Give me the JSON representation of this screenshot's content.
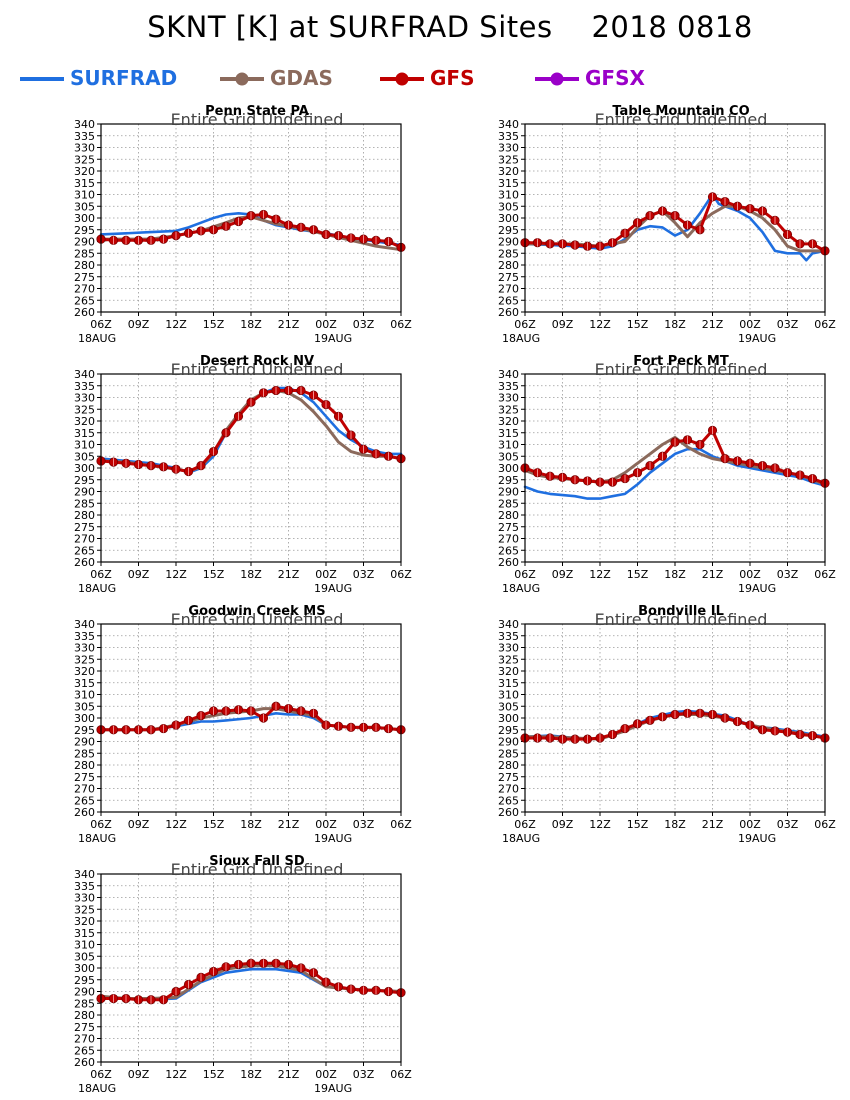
{
  "title": "SKNT [K] at SURFRAD Sites",
  "date": "2018 0818",
  "undefined_note": "Entire Grid Undefined",
  "legend": [
    {
      "name": "SURFRAD",
      "color": "#1f6fe0",
      "marker": "none"
    },
    {
      "name": "GDAS",
      "color": "#8b6a5c",
      "marker": "circle"
    },
    {
      "name": "GFS",
      "color": "#c00000",
      "marker": "circle"
    },
    {
      "name": "GFSX",
      "color": "#9a00c8",
      "marker": "circle"
    }
  ],
  "axis": {
    "x_ticks": [
      "06Z",
      "09Z",
      "12Z",
      "15Z",
      "18Z",
      "21Z",
      "00Z",
      "03Z",
      "06Z"
    ],
    "x_day_labels": [
      {
        "tick": 0,
        "label": "18AUG"
      },
      {
        "tick": 6,
        "label": "19AUG"
      }
    ],
    "y_ticks": [
      260,
      265,
      270,
      275,
      280,
      285,
      290,
      295,
      300,
      305,
      310,
      315,
      320,
      325,
      330,
      335,
      340
    ],
    "xlim": [
      0,
      24
    ],
    "ylim": [
      260,
      340
    ]
  },
  "chart_data": [
    {
      "type": "line",
      "title": "Penn State PA",
      "x_unit": "hours since 06Z 18AUG",
      "series": [
        {
          "name": "SURFRAD",
          "x": [
            0,
            2,
            4,
            6,
            7,
            8,
            9,
            10,
            11,
            12,
            13,
            14,
            15,
            16,
            18,
            20,
            22,
            24
          ],
          "values": [
            293,
            293.5,
            294,
            294.5,
            296,
            298,
            300,
            301.5,
            302,
            301.5,
            299,
            297,
            296,
            295,
            293.5,
            291.5,
            290,
            288.5
          ]
        },
        {
          "name": "GDAS",
          "x": [
            0,
            2,
            4,
            6,
            8,
            10,
            11,
            12,
            14,
            16,
            18,
            20,
            22,
            24
          ],
          "values": [
            291,
            291,
            291,
            292.5,
            294.5,
            298,
            300,
            300.5,
            297.5,
            295.5,
            293,
            290.5,
            288,
            286.5
          ]
        },
        {
          "name": "GFS",
          "x": [
            0,
            1,
            2,
            3,
            4,
            5,
            6,
            7,
            8,
            9,
            10,
            11,
            12,
            13,
            14,
            15,
            16,
            17,
            18,
            19,
            20,
            21,
            22,
            23,
            24
          ],
          "values": [
            291,
            290.5,
            290.5,
            290.5,
            290.5,
            291,
            292.5,
            293.5,
            294.5,
            295,
            296.5,
            298.5,
            301,
            301.5,
            299.5,
            297,
            296,
            295,
            293,
            292.5,
            291.5,
            291,
            290.5,
            290,
            287.5
          ]
        }
      ]
    },
    {
      "type": "line",
      "title": "Table Mountain CO",
      "x_unit": "hours since 06Z 18AUG",
      "series": [
        {
          "name": "SURFRAD",
          "x": [
            0,
            2,
            4,
            6,
            7,
            8,
            9,
            10,
            11,
            12,
            13,
            14,
            15,
            15.5,
            16,
            17,
            18,
            19,
            20,
            21,
            22,
            22.5,
            23,
            24
          ],
          "values": [
            289,
            288.5,
            288,
            287,
            288,
            291,
            295,
            296.5,
            296,
            292.5,
            295,
            302,
            310,
            306,
            305,
            303,
            300,
            294,
            286,
            285,
            285,
            282,
            285,
            286
          ]
        },
        {
          "name": "GDAS",
          "x": [
            0,
            2,
            4,
            6,
            8,
            9,
            10,
            11,
            12,
            13,
            14,
            15,
            16,
            17,
            18,
            19,
            20,
            21,
            22,
            23,
            24
          ],
          "values": [
            289,
            289,
            289,
            288,
            290,
            296,
            301,
            303,
            298,
            292,
            298,
            302,
            305,
            305,
            303,
            300,
            295,
            288,
            286,
            286,
            286
          ]
        },
        {
          "name": "GFS",
          "x": [
            0,
            1,
            2,
            3,
            4,
            5,
            6,
            7,
            8,
            9,
            10,
            11,
            12,
            13,
            14,
            15,
            16,
            17,
            18,
            19,
            20,
            21,
            22,
            23,
            24
          ],
          "values": [
            289.5,
            289.5,
            289,
            289,
            288.5,
            288,
            288,
            289.5,
            293.5,
            298,
            301,
            303,
            301,
            297,
            295,
            309,
            307,
            305,
            304,
            303,
            299,
            293,
            289,
            289,
            286
          ]
        }
      ]
    },
    {
      "type": "line",
      "title": "Desert Rock NV",
      "x_unit": "hours since 06Z 18AUG",
      "series": [
        {
          "name": "SURFRAD",
          "x": [
            0,
            2,
            4,
            6,
            7,
            8,
            9,
            10,
            11,
            12,
            13,
            14,
            15,
            16,
            17,
            18,
            19,
            20,
            21,
            22,
            23,
            24
          ],
          "values": [
            304,
            303,
            302,
            300,
            298,
            300,
            305,
            315,
            322,
            328,
            332,
            334,
            334,
            332,
            328,
            322,
            316,
            312,
            309,
            307,
            306,
            306
          ]
        },
        {
          "name": "GDAS",
          "x": [
            0,
            2,
            4,
            6,
            7,
            8,
            9,
            10,
            11,
            12,
            13,
            14,
            15,
            16,
            17,
            18,
            19,
            20,
            21,
            22,
            23,
            24
          ],
          "values": [
            303,
            302.5,
            301,
            299.5,
            298.5,
            300.5,
            306.5,
            316,
            323,
            329,
            332,
            333,
            332,
            329,
            324,
            318,
            311,
            307,
            305.5,
            305,
            305,
            304
          ]
        },
        {
          "name": "GFS",
          "x": [
            0,
            1,
            2,
            3,
            4,
            5,
            6,
            7,
            8,
            9,
            10,
            11,
            12,
            13,
            14,
            15,
            16,
            17,
            18,
            19,
            20,
            21,
            22,
            23,
            24
          ],
          "values": [
            303,
            302.5,
            302,
            301.5,
            301,
            300.5,
            299.5,
            298.5,
            301,
            307,
            315,
            322,
            328,
            332,
            333,
            333,
            333,
            331,
            327,
            322,
            314,
            308,
            306,
            305,
            304
          ]
        }
      ]
    },
    {
      "type": "line",
      "title": "Fort Peck MT",
      "x_unit": "hours since 06Z 18AUG",
      "series": [
        {
          "name": "SURFRAD",
          "x": [
            0,
            1,
            2,
            4,
            5,
            6,
            7,
            8,
            9,
            10,
            11,
            12,
            13,
            14,
            15,
            16,
            17,
            18,
            19,
            20,
            21,
            22,
            23,
            24
          ],
          "values": [
            292,
            290,
            289,
            288,
            287,
            287,
            288,
            289,
            293,
            298,
            302,
            306,
            308,
            308,
            305,
            303,
            301,
            300,
            299,
            298,
            297,
            296,
            294,
            292.5
          ]
        },
        {
          "name": "GDAS",
          "x": [
            0,
            1,
            2,
            4,
            6,
            7,
            8,
            9,
            10,
            11,
            12,
            13,
            14,
            15,
            16,
            17,
            18,
            19,
            20,
            21,
            22,
            23,
            24
          ],
          "values": [
            299,
            297,
            296,
            295,
            294,
            295,
            298,
            302,
            306,
            310,
            313,
            309,
            306,
            304,
            303,
            302,
            301,
            300,
            299,
            298,
            297,
            295,
            293
          ]
        },
        {
          "name": "GFS",
          "x": [
            0,
            1,
            2,
            3,
            4,
            5,
            6,
            7,
            8,
            9,
            10,
            11,
            12,
            13,
            14,
            15,
            16,
            17,
            18,
            19,
            20,
            21,
            22,
            23,
            24
          ],
          "values": [
            300,
            298,
            296.5,
            296,
            295,
            294.5,
            294,
            294,
            295.5,
            298,
            301,
            305,
            311,
            312,
            310,
            316,
            304,
            303,
            302,
            301,
            300,
            298,
            297,
            295.5,
            293.5
          ]
        }
      ]
    },
    {
      "type": "line",
      "title": "Goodwin Creek MS",
      "x_unit": "hours since 06Z 18AUG",
      "series": [
        {
          "name": "SURFRAD",
          "x": [
            0,
            2,
            4,
            6,
            8,
            9,
            10,
            12,
            13,
            14,
            15,
            16,
            17,
            18,
            20,
            22,
            24
          ],
          "values": [
            295,
            295,
            295,
            296.5,
            298.5,
            298.5,
            299,
            300,
            301,
            302,
            301.5,
            301.5,
            300,
            297,
            296,
            296,
            295
          ]
        },
        {
          "name": "GDAS",
          "x": [
            0,
            2,
            4,
            6,
            8,
            10,
            12,
            13,
            14,
            15,
            16,
            17,
            18,
            20,
            22,
            24
          ],
          "values": [
            295,
            295,
            295,
            297,
            300,
            302,
            303,
            304,
            304,
            303,
            302,
            301,
            297,
            296,
            296,
            295
          ]
        },
        {
          "name": "GFS",
          "x": [
            0,
            1,
            2,
            3,
            4,
            5,
            6,
            7,
            8,
            9,
            10,
            11,
            12,
            13,
            14,
            15,
            16,
            17,
            18,
            19,
            20,
            21,
            22,
            23,
            24
          ],
          "values": [
            295,
            295,
            295,
            295,
            295,
            295.5,
            297,
            299,
            301,
            303,
            303,
            303.5,
            303,
            300,
            305,
            304,
            303,
            302,
            297,
            296.5,
            296,
            296,
            296,
            295.5,
            295
          ]
        }
      ]
    },
    {
      "type": "line",
      "title": "Bondville IL",
      "x_unit": "hours since 06Z 18AUG",
      "series": [
        {
          "name": "SURFRAD",
          "x": [
            0,
            2,
            4,
            6,
            8,
            10,
            12,
            13,
            14,
            16,
            18,
            19,
            20,
            22,
            24
          ],
          "values": [
            292,
            292.5,
            291.5,
            291,
            295,
            300,
            302.5,
            303,
            302.5,
            301,
            297,
            296,
            295.5,
            294,
            292
          ]
        },
        {
          "name": "GDAS",
          "x": [
            0,
            2,
            4,
            6,
            8,
            10,
            12,
            14,
            16,
            18,
            20,
            22,
            24
          ],
          "values": [
            292,
            292,
            291.5,
            291,
            294.5,
            299,
            301.5,
            301.5,
            300,
            297,
            295,
            293.5,
            291.5
          ]
        },
        {
          "name": "GFS",
          "x": [
            0,
            1,
            2,
            3,
            4,
            5,
            6,
            7,
            8,
            9,
            10,
            11,
            12,
            13,
            14,
            15,
            16,
            17,
            18,
            19,
            20,
            21,
            22,
            23,
            24
          ],
          "values": [
            291.5,
            291.5,
            291.5,
            291,
            291,
            291,
            291.5,
            293,
            295.5,
            297.5,
            299,
            300.5,
            301.5,
            302,
            302,
            301.5,
            300,
            298.5,
            297,
            295,
            294.5,
            294,
            293,
            292.5,
            291.5
          ]
        }
      ]
    },
    {
      "type": "line",
      "title": "Sioux Fall SD",
      "x_unit": "hours since 06Z 18AUG",
      "series": [
        {
          "name": "SURFRAD",
          "x": [
            0,
            2,
            4,
            6,
            8,
            10,
            12,
            14,
            16,
            17,
            18,
            20,
            22,
            24
          ],
          "values": [
            287,
            287,
            286.5,
            287,
            294,
            298,
            299.5,
            299.5,
            298,
            295,
            292,
            291,
            290.5,
            290
          ]
        },
        {
          "name": "GDAS",
          "x": [
            0,
            2,
            4,
            6,
            8,
            10,
            12,
            14,
            16,
            17,
            18,
            20,
            22,
            24
          ],
          "values": [
            288,
            287,
            287,
            287.5,
            294.5,
            299.5,
            301,
            301,
            299,
            295.5,
            292,
            291,
            290.5,
            290
          ]
        },
        {
          "name": "GFS",
          "x": [
            0,
            1,
            2,
            3,
            4,
            5,
            6,
            7,
            8,
            9,
            10,
            11,
            12,
            13,
            14,
            15,
            16,
            17,
            18,
            19,
            20,
            21,
            22,
            23,
            24
          ],
          "values": [
            287,
            287,
            287,
            286.5,
            286.5,
            286.5,
            290,
            293,
            296,
            298.5,
            300.5,
            301.5,
            302,
            302,
            302,
            301.5,
            300,
            298,
            294,
            292,
            291,
            290.5,
            290.5,
            290,
            289.5
          ]
        }
      ]
    }
  ]
}
